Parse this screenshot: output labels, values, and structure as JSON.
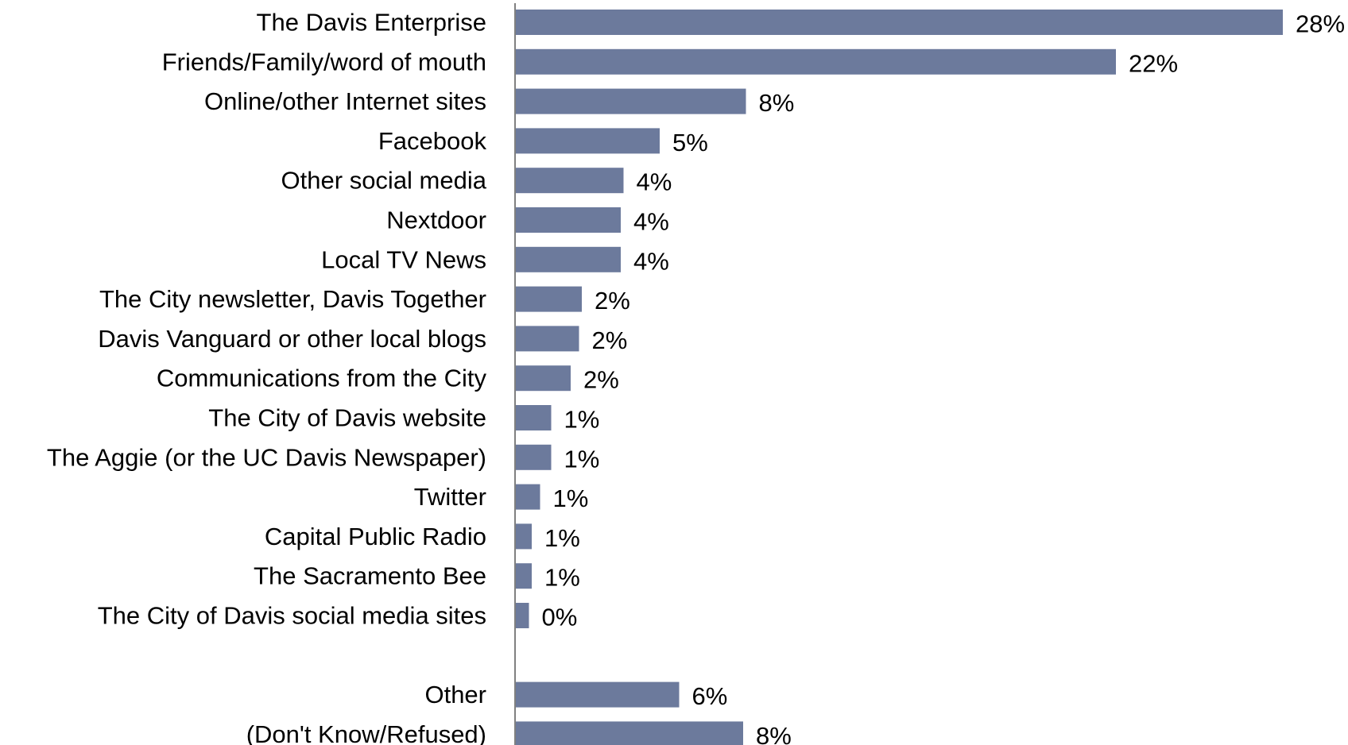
{
  "chart_data": {
    "type": "bar",
    "orientation": "horizontal",
    "title": "",
    "xlabel": "",
    "ylabel": "",
    "grid": false,
    "legend": "none",
    "categories": [
      "The Davis Enterprise",
      "Friends/Family/word of mouth",
      "Online/other Internet sites",
      "Facebook",
      "Other social media",
      "Nextdoor",
      "Local TV News",
      "The City newsletter, Davis Together",
      "Davis Vanguard or other local blogs",
      "Communications from the City",
      "The City of Davis website",
      "The Aggie (or the UC Davis Newspaper)",
      "Twitter",
      "Capital Public Radio",
      "The Sacramento Bee",
      "The City of Davis social media sites",
      "",
      "Other",
      "(Don't Know/Refused)"
    ],
    "values": [
      27.6,
      21.6,
      8.3,
      5.2,
      3.9,
      3.8,
      3.8,
      2.4,
      2.3,
      2.0,
      1.3,
      1.3,
      0.9,
      0.6,
      0.6,
      0.5,
      null,
      5.9,
      8.2
    ],
    "value_labels": [
      "28%",
      "22%",
      "8%",
      "5%",
      "4%",
      "4%",
      "4%",
      "2%",
      "2%",
      "2%",
      "1%",
      "1%",
      "1%",
      "1%",
      "1%",
      "0%",
      "",
      "6%",
      "8%"
    ],
    "xlim": [
      0,
      28
    ],
    "colors": {
      "bar": "#6c7a9c",
      "axis": "#808080",
      "text": "#000000"
    }
  }
}
